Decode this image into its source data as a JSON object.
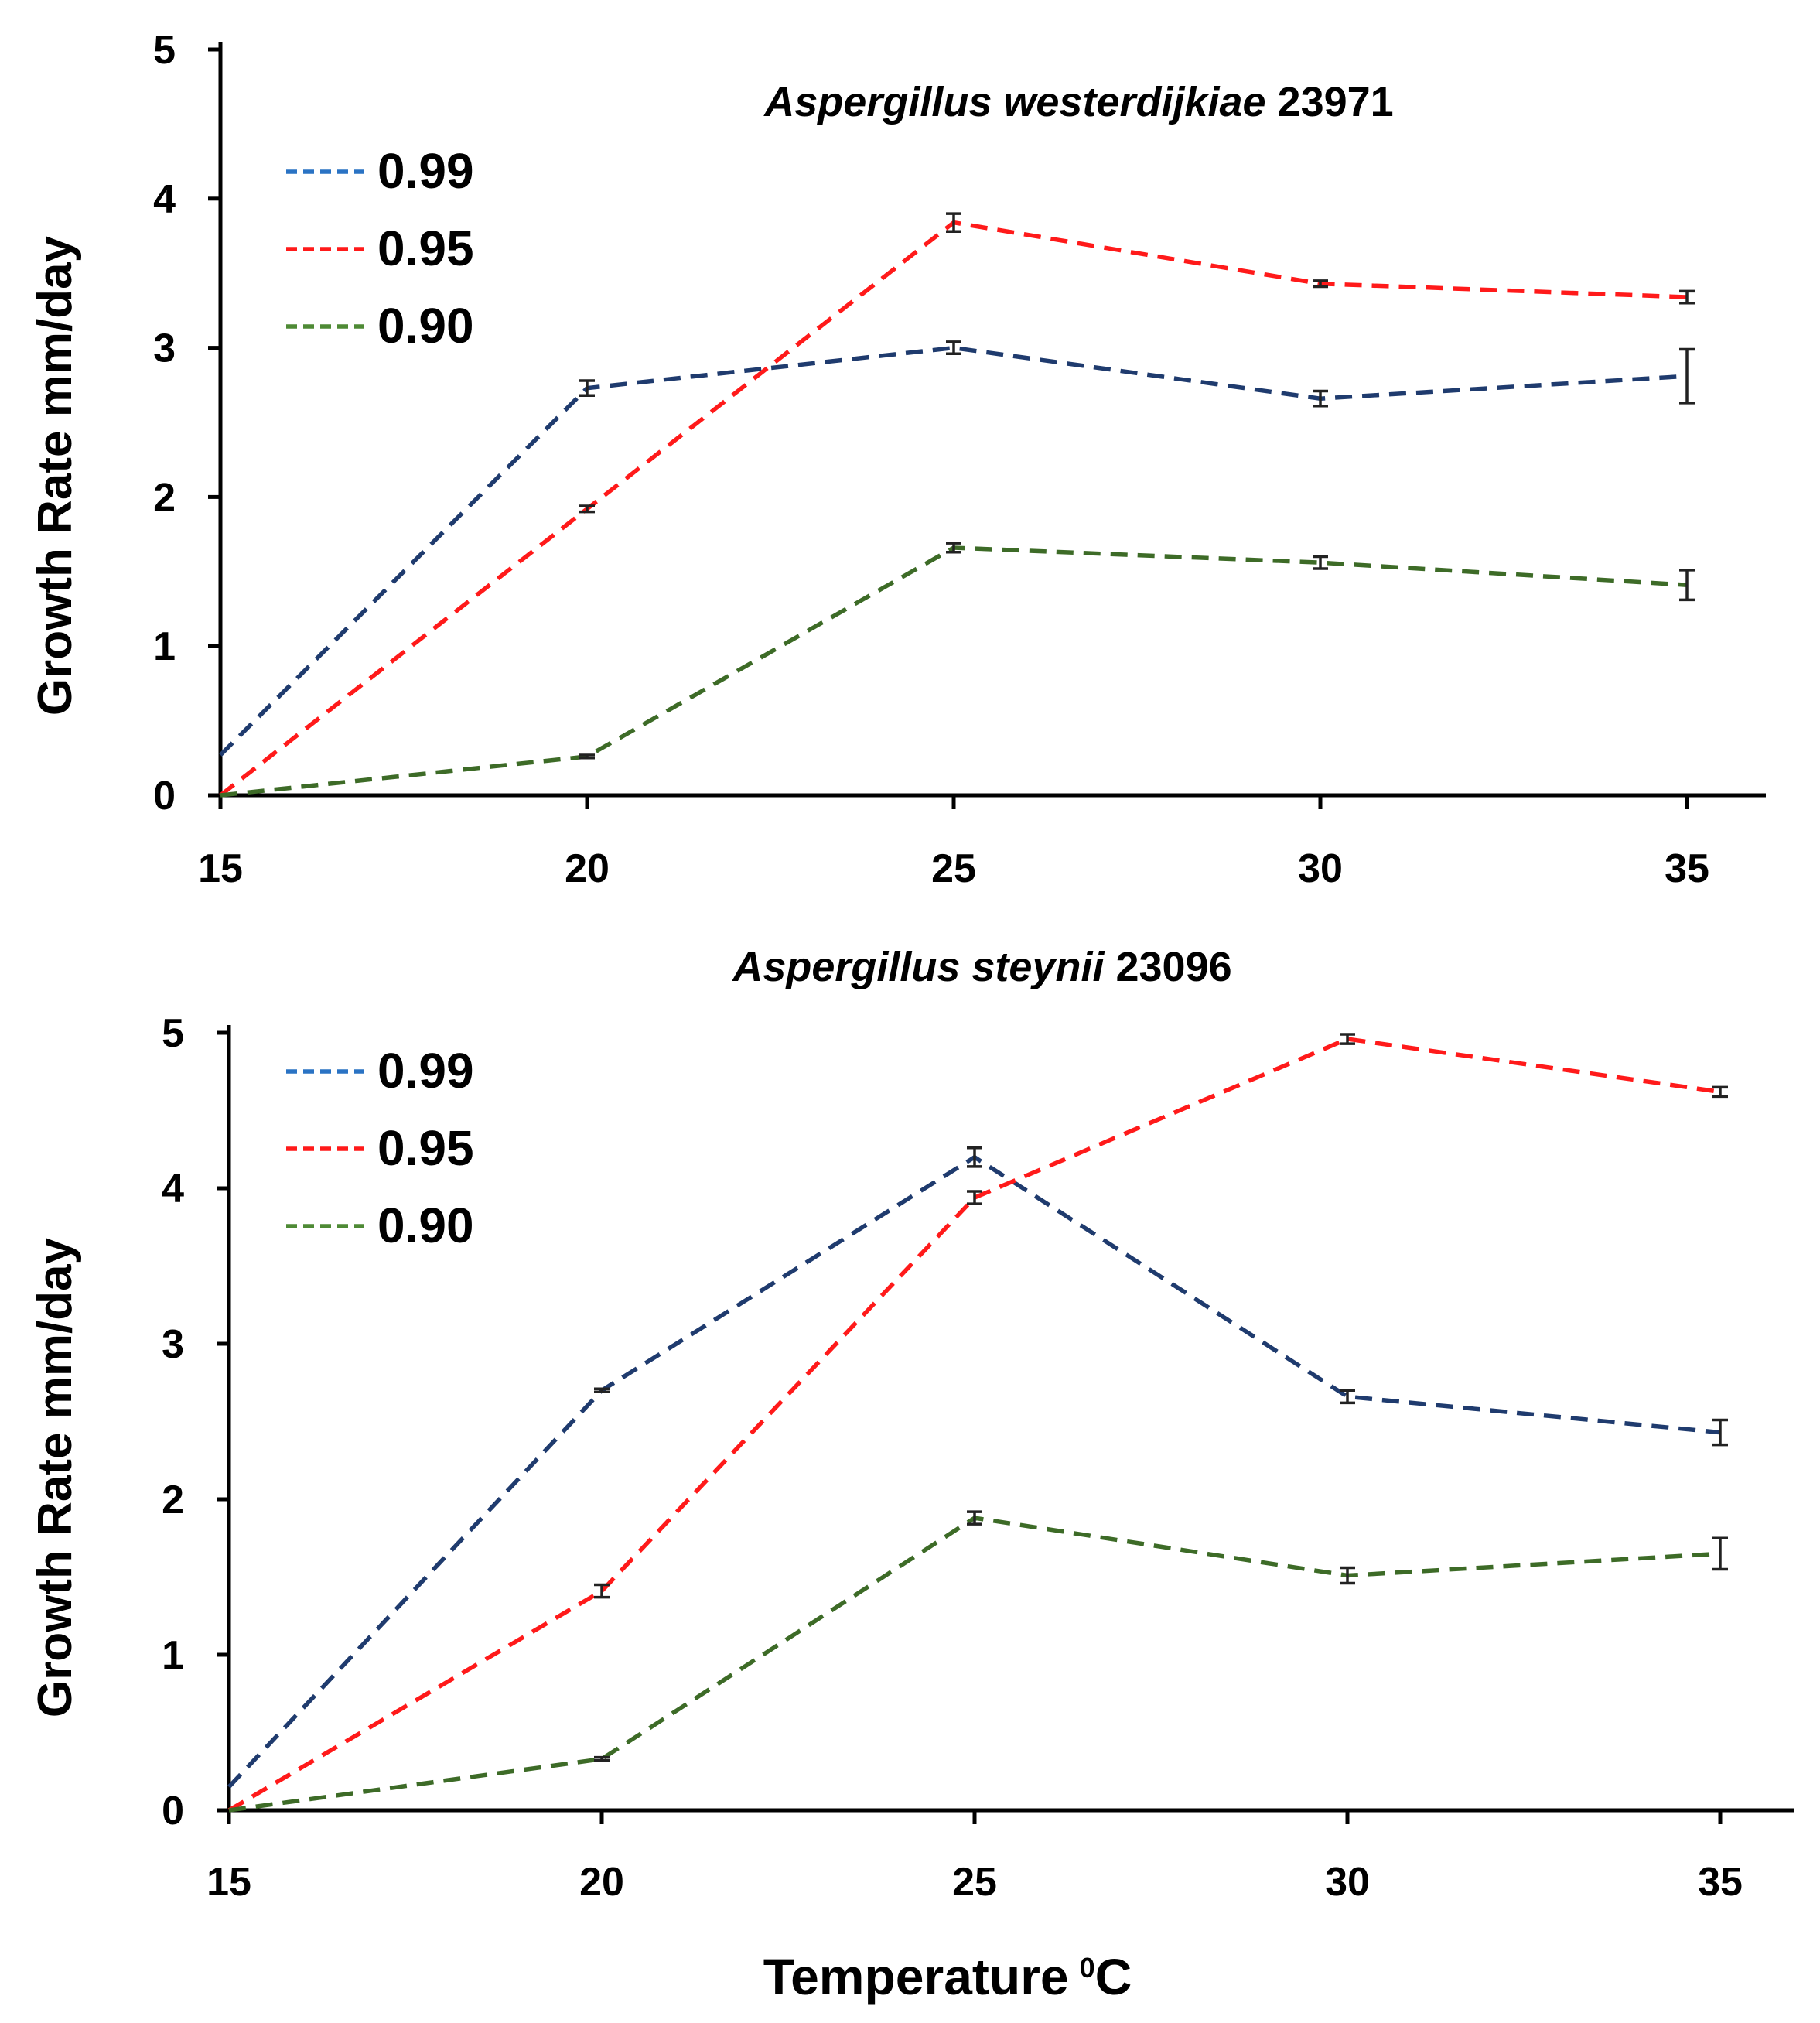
{
  "colors": {
    "axis": "#000000",
    "errorbar": "#222222",
    "legend_099": "#2a73c4",
    "legend_095": "#ff1a1a",
    "legend_090": "#4e8a35",
    "line_099": "#1f3b6e",
    "line_095": "#ff1a1a",
    "line_090": "#3d6b27"
  },
  "figure": {
    "xlabel": "Temperature",
    "xlabel_sup": "0",
    "xlabel_unit": "C"
  },
  "chart_data": [
    {
      "type": "line",
      "title_italic": "Aspergillus westerdijkiae",
      "title_rest": " 23971",
      "xlabel": "",
      "ylabel": "Growth Rate mm/day",
      "x": [
        15,
        20,
        25,
        30,
        35
      ],
      "xticks": [
        "15",
        "20",
        "25",
        "30",
        "35"
      ],
      "yticks": [
        "0",
        "1",
        "2",
        "3",
        "4",
        "5"
      ],
      "xlim": [
        15,
        36
      ],
      "ylim": [
        0,
        5
      ],
      "legend": {
        "position": "top-left",
        "labels": [
          "0.99",
          "0.95",
          "0.90"
        ]
      },
      "series": [
        {
          "name": "0.99",
          "values": [
            0.27,
            2.73,
            3.0,
            2.66,
            2.81
          ],
          "errors": [
            0,
            0.05,
            0.04,
            0.05,
            0.18
          ]
        },
        {
          "name": "0.95",
          "values": [
            0.0,
            1.92,
            3.84,
            3.43,
            3.34
          ],
          "errors": [
            0,
            0.02,
            0.06,
            0.02,
            0.04
          ]
        },
        {
          "name": "0.90",
          "values": [
            0.0,
            0.26,
            1.66,
            1.56,
            1.41
          ],
          "errors": [
            0,
            0.01,
            0.03,
            0.04,
            0.1
          ]
        }
      ]
    },
    {
      "type": "line",
      "title_italic": "Aspergillus steynii",
      "title_rest": " 23096",
      "xlabel": "Temperature 0C",
      "ylabel": "Growth Rate mm/day",
      "x": [
        15,
        20,
        25,
        30,
        35
      ],
      "xticks": [
        "15",
        "20",
        "25",
        "30",
        "35"
      ],
      "yticks": [
        "0",
        "1",
        "2",
        "3",
        "4",
        "5"
      ],
      "xlim": [
        15,
        36
      ],
      "ylim": [
        0,
        5
      ],
      "legend": {
        "position": "top-left",
        "labels": [
          "0.99",
          "0.95",
          "0.90"
        ]
      },
      "series": [
        {
          "name": "0.99",
          "values": [
            0.15,
            2.7,
            4.2,
            2.66,
            2.43
          ],
          "errors": [
            0,
            0.01,
            0.06,
            0.04,
            0.08
          ]
        },
        {
          "name": "0.95",
          "values": [
            0.0,
            1.41,
            3.94,
            4.96,
            4.62
          ],
          "errors": [
            0,
            0.04,
            0.04,
            0.03,
            0.03
          ]
        },
        {
          "name": "0.90",
          "values": [
            0.0,
            0.33,
            1.88,
            1.51,
            1.65
          ],
          "errors": [
            0,
            0.01,
            0.04,
            0.05,
            0.1
          ]
        }
      ]
    }
  ]
}
